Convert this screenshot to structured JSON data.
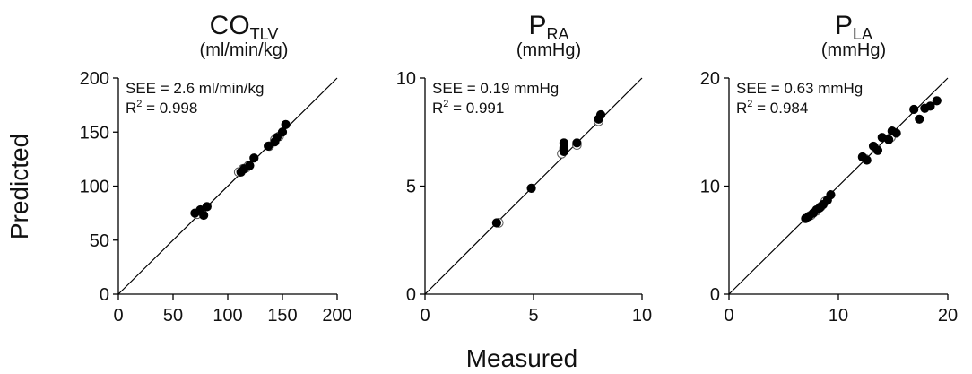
{
  "figure": {
    "ylabel": "Predicted",
    "xlabel": "Measured"
  },
  "chart_data": [
    {
      "type": "scatter",
      "title_main": "CO",
      "title_sub": "TLV",
      "unit": "(ml/min/kg)",
      "xlim": [
        0,
        200
      ],
      "ylim": [
        0,
        200
      ],
      "xticks": [
        0,
        50,
        100,
        150,
        200
      ],
      "yticks": [
        0,
        50,
        100,
        150,
        200
      ],
      "xtick_labels": [
        "0",
        "50",
        "100",
        "150",
        "200"
      ],
      "ytick_labels": [
        "0",
        "50",
        "100",
        "150",
        "200"
      ],
      "identity_line": true,
      "annotation_see": "SEE = 2.6 ml/min/kg",
      "annotation_r2_prefix": "R",
      "annotation_r2_sup": "2",
      "annotation_r2_value": " = 0.998",
      "series": [
        {
          "name": "open",
          "points": [
            [
              72,
              74
            ],
            [
              76,
              77
            ],
            [
              110,
              113
            ],
            [
              114,
              116
            ],
            [
              117,
              117
            ],
            [
              119,
              119
            ],
            [
              138,
              137
            ],
            [
              143,
              143
            ],
            [
              147,
              146
            ]
          ]
        },
        {
          "name": "filled",
          "points": [
            [
              70,
              75
            ],
            [
              75,
              78
            ],
            [
              78,
              73
            ],
            [
              81,
              81
            ],
            [
              112,
              113
            ],
            [
              115,
              116
            ],
            [
              120,
              119
            ],
            [
              124,
              126
            ],
            [
              137,
              137
            ],
            [
              143,
              141
            ],
            [
              145,
              145
            ],
            [
              150,
              150
            ],
            [
              153,
              157
            ]
          ]
        }
      ]
    },
    {
      "type": "scatter",
      "title_main": "P",
      "title_sub": "RA",
      "unit": "(mmHg)",
      "xlim": [
        0,
        10
      ],
      "ylim": [
        0,
        10
      ],
      "xticks": [
        0,
        5,
        10
      ],
      "yticks": [
        0,
        5,
        10
      ],
      "xtick_labels": [
        "0",
        "5",
        "10"
      ],
      "ytick_labels": [
        "0",
        "5",
        "10"
      ],
      "identity_line": true,
      "annotation_see": "SEE = 0.19 mmHg",
      "annotation_r2_prefix": "R",
      "annotation_r2_sup": "2",
      "annotation_r2_value": " = 0.991",
      "series": [
        {
          "name": "open",
          "points": [
            [
              3.4,
              3.3
            ],
            [
              6.3,
              6.5
            ],
            [
              6.4,
              6.7
            ],
            [
              7.0,
              6.9
            ],
            [
              8.0,
              8.0
            ]
          ]
        },
        {
          "name": "filled",
          "points": [
            [
              3.3,
              3.3
            ],
            [
              4.9,
              4.9
            ],
            [
              6.4,
              6.6
            ],
            [
              6.4,
              6.8
            ],
            [
              6.4,
              7.0
            ],
            [
              7.0,
              7.0
            ],
            [
              8.0,
              8.1
            ],
            [
              8.1,
              8.3
            ]
          ]
        }
      ]
    },
    {
      "type": "scatter",
      "title_main": "P",
      "title_sub": "LA",
      "unit": "(mmHg)",
      "xlim": [
        0,
        20
      ],
      "ylim": [
        0,
        20
      ],
      "xticks": [
        0,
        10,
        20
      ],
      "yticks": [
        0,
        10,
        20
      ],
      "xtick_labels": [
        "0",
        "10",
        "20"
      ],
      "ytick_labels": [
        "0",
        "10",
        "20"
      ],
      "identity_line": true,
      "annotation_see": "SEE = 0.63 mmHg",
      "annotation_r2_prefix": "R",
      "annotation_r2_sup": "2",
      "annotation_r2_value": " = 0.984",
      "series": [
        {
          "name": "open",
          "points": [
            [
              7.5,
              7.3
            ],
            [
              8.0,
              7.7
            ],
            [
              8.4,
              8.1
            ],
            [
              8.8,
              8.6
            ],
            [
              12.5,
              12.5
            ],
            [
              13.5,
              13.4
            ],
            [
              14.8,
              14.5
            ]
          ]
        },
        {
          "name": "filled",
          "points": [
            [
              7.0,
              7.0
            ],
            [
              7.3,
              7.2
            ],
            [
              7.7,
              7.5
            ],
            [
              8.0,
              7.8
            ],
            [
              8.3,
              8.0
            ],
            [
              8.6,
              8.3
            ],
            [
              9.0,
              8.7
            ],
            [
              9.3,
              9.2
            ],
            [
              12.2,
              12.7
            ],
            [
              12.6,
              12.4
            ],
            [
              13.2,
              13.7
            ],
            [
              13.6,
              13.3
            ],
            [
              14.0,
              14.5
            ],
            [
              14.6,
              14.3
            ],
            [
              14.9,
              15.1
            ],
            [
              15.3,
              14.9
            ],
            [
              16.9,
              17.1
            ],
            [
              17.4,
              16.2
            ],
            [
              17.9,
              17.2
            ],
            [
              18.4,
              17.4
            ],
            [
              19.0,
              17.9
            ]
          ]
        }
      ]
    }
  ]
}
